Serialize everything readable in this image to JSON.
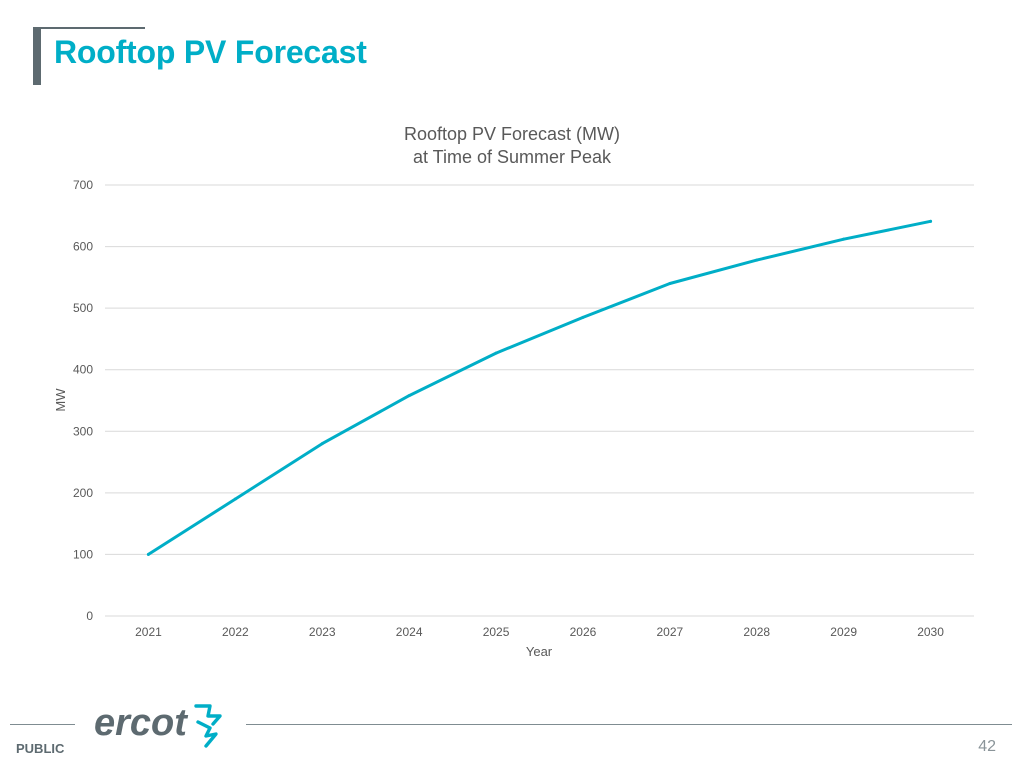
{
  "slide": {
    "title": "Rooftop PV Forecast",
    "classification": "PUBLIC",
    "page_number": "42",
    "logo_text": "ercot"
  },
  "colors": {
    "accent": "#00aec7",
    "title_bar": "#5d6a70",
    "gridline": "#d9d9d9",
    "text": "#595959"
  },
  "chart_data": {
    "type": "line",
    "title_lines": [
      "Rooftop PV Forecast (MW)",
      "at Time of Summer Peak"
    ],
    "xlabel": "Year",
    "ylabel": "MW",
    "ylim": [
      0,
      700
    ],
    "yticks": [
      0,
      100,
      200,
      300,
      400,
      500,
      600,
      700
    ],
    "grid": true,
    "categories": [
      "2021",
      "2022",
      "2023",
      "2024",
      "2025",
      "2026",
      "2027",
      "2028",
      "2029",
      "2030"
    ],
    "series": [
      {
        "name": "Rooftop PV Forecast (MW)",
        "color": "#00aec7",
        "values": [
          100,
          190,
          280,
          358,
          427,
          485,
          540,
          578,
          612,
          641
        ]
      }
    ]
  }
}
